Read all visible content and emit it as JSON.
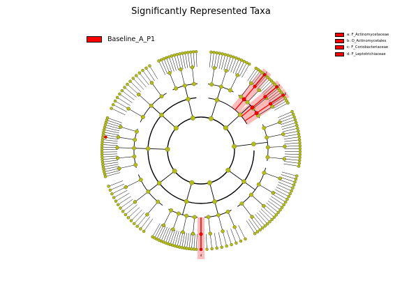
{
  "title": "Significantly Represented Taxa",
  "legend": {
    "class_label": "Baseline_A_P1",
    "class_color": "#ff0000"
  },
  "taxa_legend": [
    {
      "letter": "a",
      "text": "a: F_Actinomycetaceae"
    },
    {
      "letter": "b",
      "text": "b: O_Actinomycetales"
    },
    {
      "letter": "c",
      "text": "c: F_Coriobacteriaceae"
    },
    {
      "letter": "d",
      "text": "d: F_Leptotrichiaceae"
    }
  ],
  "colors": {
    "node": "#b5bd1d",
    "node_edge": "#6f7410",
    "highlight": "#ff0000",
    "highlight_bg": "#ffb0b0",
    "branch": "#000000"
  },
  "cladogram": {
    "levels": [
      "domain",
      "phylum",
      "class",
      "order",
      "family",
      "genus"
    ],
    "highlighted_clades": [
      "a",
      "b",
      "c",
      "d"
    ]
  }
}
